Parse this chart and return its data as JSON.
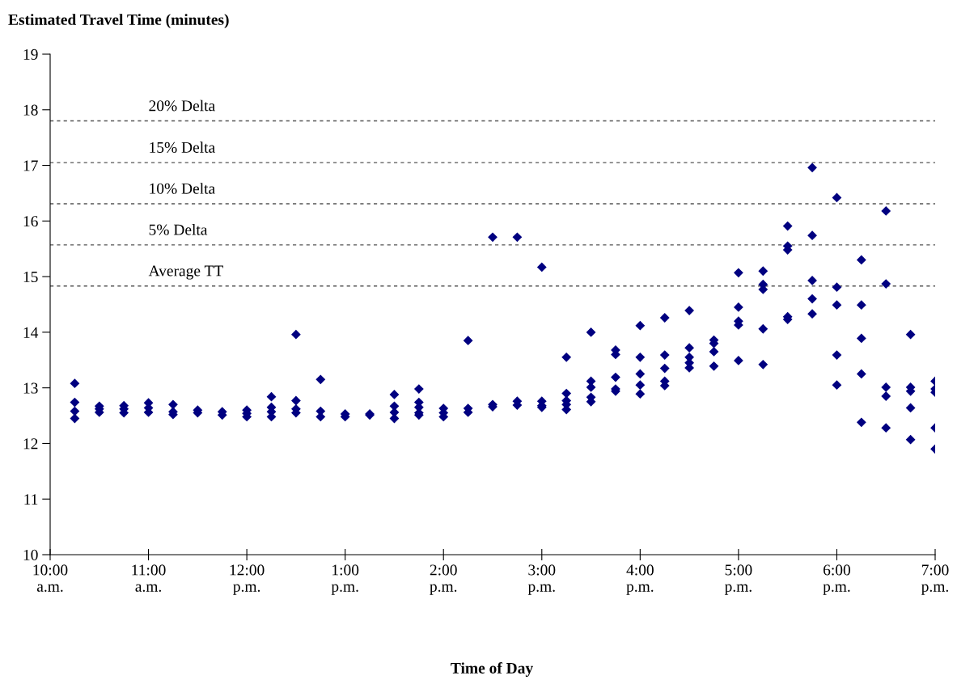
{
  "chart_data": {
    "type": "scatter",
    "xlabel": "Time of Day",
    "ylabel": "Estimated Travel Time (minutes)",
    "xlim": [
      10,
      19
    ],
    "ylim": [
      10,
      19
    ],
    "xticks": [
      {
        "value": 10,
        "label": "10:00\na.m."
      },
      {
        "value": 11,
        "label": "11:00\na.m."
      },
      {
        "value": 12,
        "label": "12:00\np.m."
      },
      {
        "value": 13,
        "label": "1:00\np.m."
      },
      {
        "value": 14,
        "label": "2:00\np.m."
      },
      {
        "value": 15,
        "label": "3:00\np.m."
      },
      {
        "value": 16,
        "label": "4:00\np.m."
      },
      {
        "value": 17,
        "label": "5:00\np.m."
      },
      {
        "value": 18,
        "label": "6:00\np.m."
      },
      {
        "value": 19,
        "label": "7:00\np.m."
      }
    ],
    "yticks": [
      10,
      11,
      12,
      13,
      14,
      15,
      16,
      17,
      18,
      19
    ],
    "grid": false,
    "legend": false,
    "marker": "diamond",
    "ref_lines": [
      {
        "axis": "y",
        "value": 14.83,
        "label": "Average TT",
        "color": "#555555",
        "line_style": "dashed"
      },
      {
        "axis": "y",
        "value": 15.57,
        "label": "5% Delta",
        "color": "#555555",
        "line_style": "dashed"
      },
      {
        "axis": "y",
        "value": 16.31,
        "label": "10% Delta",
        "color": "#555555",
        "line_style": "dashed"
      },
      {
        "axis": "y",
        "value": 17.05,
        "label": "15% Delta",
        "color": "#555555",
        "line_style": "dashed"
      },
      {
        "axis": "y",
        "value": 17.8,
        "label": "20% Delta",
        "color": "#555555",
        "line_style": "dashed"
      }
    ],
    "series": [
      {
        "color": "#000080",
        "x": [
          10.25,
          10.25,
          10.25,
          10.25,
          10.5,
          10.5,
          10.5,
          10.75,
          10.75,
          10.75,
          11,
          11,
          11,
          11.25,
          11.25,
          11.25,
          11.5,
          11.5,
          11.75,
          11.75,
          12,
          12,
          12,
          12.25,
          12.25,
          12.25,
          12.25,
          12.5,
          12.5,
          12.5,
          12.5,
          12.75,
          12.75,
          12.75,
          13,
          13,
          13.25,
          13.25,
          13.5,
          13.5,
          13.5,
          13.5,
          13.75,
          13.75,
          13.75,
          13.75,
          13.75,
          14,
          14,
          14,
          14.25,
          14.25,
          14.25,
          14.5,
          14.5,
          14.5,
          14.75,
          14.75,
          14.75,
          15,
          15,
          15,
          15,
          15.25,
          15.25,
          15.25,
          15.25,
          15.25,
          15.5,
          15.5,
          15.5,
          15.5,
          15.5,
          15.75,
          15.75,
          15.75,
          15.75,
          15.75,
          16,
          16,
          16,
          16,
          16,
          16.25,
          16.25,
          16.25,
          16.25,
          16.25,
          16.5,
          16.5,
          16.5,
          16.5,
          16.5,
          16.75,
          16.75,
          16.75,
          16.75,
          17,
          17,
          17,
          17,
          17,
          17.25,
          17.25,
          17.25,
          17.25,
          17.25,
          17.5,
          17.5,
          17.5,
          17.5,
          17.5,
          17.75,
          17.75,
          17.75,
          17.75,
          17.75,
          18,
          18,
          18,
          18,
          18,
          18.25,
          18.25,
          18.25,
          18.25,
          18.25,
          18.5,
          18.5,
          18.5,
          18.5,
          18.5,
          18.75,
          18.75,
          18.75,
          18.75,
          18.75,
          19,
          19,
          19,
          19,
          19
        ],
        "values": [
          13.08,
          12.74,
          12.58,
          12.45,
          12.67,
          12.62,
          12.56,
          12.68,
          12.62,
          12.55,
          12.73,
          12.64,
          12.56,
          12.7,
          12.57,
          12.52,
          12.6,
          12.55,
          12.57,
          12.51,
          12.6,
          12.54,
          12.48,
          12.84,
          12.65,
          12.57,
          12.48,
          13.96,
          12.77,
          12.62,
          12.55,
          13.15,
          12.58,
          12.48,
          12.53,
          12.48,
          12.53,
          12.51,
          12.88,
          12.67,
          12.56,
          12.45,
          12.98,
          12.74,
          12.65,
          12.55,
          12.51,
          12.63,
          12.55,
          12.48,
          13.85,
          12.63,
          12.56,
          15.71,
          12.7,
          12.66,
          15.71,
          12.76,
          12.69,
          15.17,
          12.76,
          12.68,
          12.65,
          13.55,
          12.9,
          12.77,
          12.7,
          12.61,
          14.0,
          13.12,
          13.01,
          12.83,
          12.75,
          13.68,
          13.6,
          13.19,
          12.98,
          12.94,
          14.12,
          13.55,
          13.25,
          13.05,
          12.89,
          14.26,
          13.59,
          13.35,
          13.12,
          13.04,
          14.39,
          13.72,
          13.55,
          13.45,
          13.36,
          13.86,
          13.8,
          13.65,
          13.39,
          15.07,
          14.45,
          14.2,
          14.13,
          13.49,
          15.1,
          14.86,
          14.77,
          14.06,
          13.42,
          15.91,
          15.55,
          15.48,
          14.28,
          14.23,
          16.96,
          15.74,
          14.93,
          14.6,
          14.33,
          16.42,
          14.81,
          14.49,
          13.59,
          13.05,
          15.3,
          14.49,
          13.89,
          13.25,
          12.38,
          16.18,
          14.87,
          13.01,
          12.85,
          12.28,
          13.96,
          13.01,
          12.94,
          12.64,
          12.07,
          13.12,
          12.98,
          12.92,
          12.28,
          11.9
        ]
      }
    ]
  }
}
